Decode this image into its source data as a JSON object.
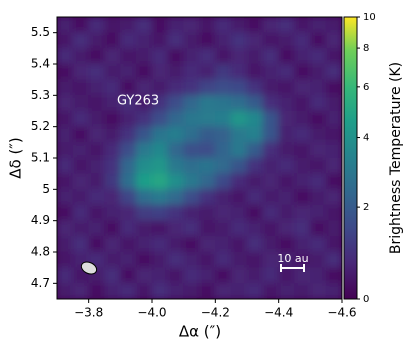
{
  "chart_data": {
    "type": "image",
    "xlabel": "Δα (″)",
    "ylabel": "Δδ (″)",
    "colorbar_label": "Brightness Temperature (K)",
    "annotations": [
      "GY263",
      "10 au"
    ],
    "colormap": "viridis",
    "color_scale": "asinh",
    "xlim": [
      -3.7,
      -4.6
    ],
    "ylim": [
      4.65,
      5.55
    ],
    "clim": [
      0,
      10
    ],
    "xticks": [
      {
        "value": -3.8,
        "label": "−3.8"
      },
      {
        "value": -4.0,
        "label": "−4.0"
      },
      {
        "value": -4.2,
        "label": "−4.2"
      },
      {
        "value": -4.4,
        "label": "−4.4"
      },
      {
        "value": -4.6,
        "label": "−4.6"
      }
    ],
    "yticks": [
      4.7,
      4.8,
      4.9,
      5.0,
      5.1,
      5.2,
      5.3,
      5.4,
      5.5
    ],
    "cticks": [
      0,
      2,
      4,
      6,
      8,
      10
    ],
    "x": [
      -3.725,
      -3.775,
      -3.825,
      -3.875,
      -3.925,
      -3.975,
      -4.025,
      -4.075,
      -4.125,
      -4.175,
      -4.225,
      -4.275,
      -4.325,
      -4.375,
      -4.425,
      -4.475,
      -4.525,
      -4.575
    ],
    "y": [
      5.525,
      5.475,
      5.425,
      5.375,
      5.325,
      5.275,
      5.225,
      5.175,
      5.125,
      5.075,
      5.025,
      4.975,
      4.925,
      4.875,
      4.825,
      4.775,
      4.725,
      4.675
    ],
    "z": [
      [
        0.6,
        0.3,
        0.8,
        0.4,
        0.5,
        0.9,
        0.3,
        0.6,
        0.7,
        0.4,
        0.8,
        0.5,
        0.3,
        0.7,
        0.9,
        0.4,
        0.6,
        0.5
      ],
      [
        0.4,
        0.9,
        0.5,
        0.3,
        0.8,
        0.6,
        0.4,
        0.9,
        0.5,
        0.3,
        0.6,
        1.0,
        0.7,
        0.4,
        0.5,
        0.8,
        0.3,
        0.7
      ],
      [
        0.8,
        0.5,
        0.3,
        0.7,
        0.4,
        0.5,
        0.8,
        0.3,
        0.6,
        0.9,
        0.4,
        0.7,
        0.5,
        0.9,
        0.3,
        0.6,
        0.8,
        0.4
      ],
      [
        0.3,
        0.7,
        0.9,
        0.5,
        0.6,
        0.3,
        0.7,
        0.5,
        0.8,
        0.6,
        1.1,
        0.8,
        0.4,
        0.6,
        0.8,
        0.3,
        0.5,
        0.9
      ],
      [
        0.5,
        0.4,
        0.6,
        0.8,
        0.3,
        0.7,
        0.5,
        0.8,
        1.0,
        1.4,
        1.6,
        1.5,
        1.0,
        0.5,
        0.4,
        0.7,
        0.6,
        0.3
      ],
      [
        0.7,
        0.5,
        0.4,
        0.6,
        0.9,
        0.5,
        1.0,
        1.6,
        2.4,
        3.0,
        2.8,
        2.6,
        2.0,
        0.9,
        0.6,
        0.4,
        0.8,
        0.5
      ],
      [
        0.4,
        0.8,
        0.5,
        0.3,
        0.6,
        1.0,
        1.6,
        2.4,
        2.9,
        3.1,
        3.2,
        4.2,
        3.6,
        1.8,
        0.7,
        0.5,
        0.3,
        0.6
      ],
      [
        0.6,
        0.3,
        0.7,
        0.5,
        1.0,
        1.8,
        2.8,
        3.2,
        2.6,
        2.0,
        2.2,
        3.0,
        3.3,
        1.8,
        0.6,
        0.8,
        0.5,
        0.4
      ],
      [
        0.5,
        0.6,
        0.4,
        0.8,
        1.6,
        3.0,
        3.6,
        2.4,
        1.7,
        1.6,
        2.3,
        3.0,
        2.0,
        0.9,
        0.5,
        0.4,
        0.7,
        0.6
      ],
      [
        0.8,
        0.4,
        0.6,
        1.0,
        2.4,
        3.8,
        4.2,
        3.0,
        2.6,
        2.8,
        2.5,
        1.8,
        1.0,
        0.6,
        0.8,
        0.5,
        0.4,
        0.7
      ],
      [
        0.4,
        0.7,
        0.5,
        1.1,
        2.6,
        4.6,
        5.0,
        3.9,
        3.0,
        2.4,
        1.5,
        0.8,
        0.5,
        0.7,
        0.4,
        0.6,
        0.8,
        0.3
      ],
      [
        0.6,
        0.5,
        0.8,
        0.7,
        1.4,
        2.6,
        3.0,
        2.5,
        1.6,
        1.0,
        0.6,
        0.4,
        0.8,
        0.5,
        0.6,
        0.3,
        0.5,
        0.7
      ],
      [
        0.3,
        0.8,
        0.4,
        0.6,
        0.7,
        1.2,
        1.3,
        1.0,
        0.6,
        0.5,
        0.7,
        0.6,
        0.3,
        0.8,
        0.5,
        0.7,
        0.6,
        0.4
      ],
      [
        0.7,
        0.5,
        0.6,
        0.3,
        0.8,
        0.5,
        0.4,
        0.7,
        0.9,
        0.4,
        0.5,
        0.8,
        0.6,
        0.4,
        0.7,
        0.9,
        0.3,
        0.5
      ],
      [
        0.5,
        0.9,
        0.3,
        0.7,
        0.4,
        0.6,
        0.8,
        0.5,
        0.3,
        0.7,
        0.6,
        0.4,
        0.9,
        0.5,
        0.3,
        0.6,
        0.8,
        0.4
      ],
      [
        0.4,
        0.6,
        0.8,
        0.5,
        0.6,
        0.3,
        0.5,
        0.9,
        0.6,
        0.4,
        0.8,
        0.5,
        0.4,
        0.7,
        0.6,
        0.4,
        0.5,
        0.9
      ],
      [
        0.8,
        0.4,
        0.5,
        0.9,
        0.3,
        0.7,
        0.6,
        0.4,
        0.8,
        0.6,
        0.3,
        0.7,
        0.5,
        0.8,
        0.4,
        0.7,
        0.6,
        0.3
      ],
      [
        0.5,
        0.7,
        0.3,
        0.6,
        0.8,
        0.4,
        0.9,
        0.6,
        0.5,
        0.3,
        0.7,
        0.6,
        0.8,
        0.4,
        0.6,
        0.5,
        0.7,
        0.6
      ]
    ]
  }
}
